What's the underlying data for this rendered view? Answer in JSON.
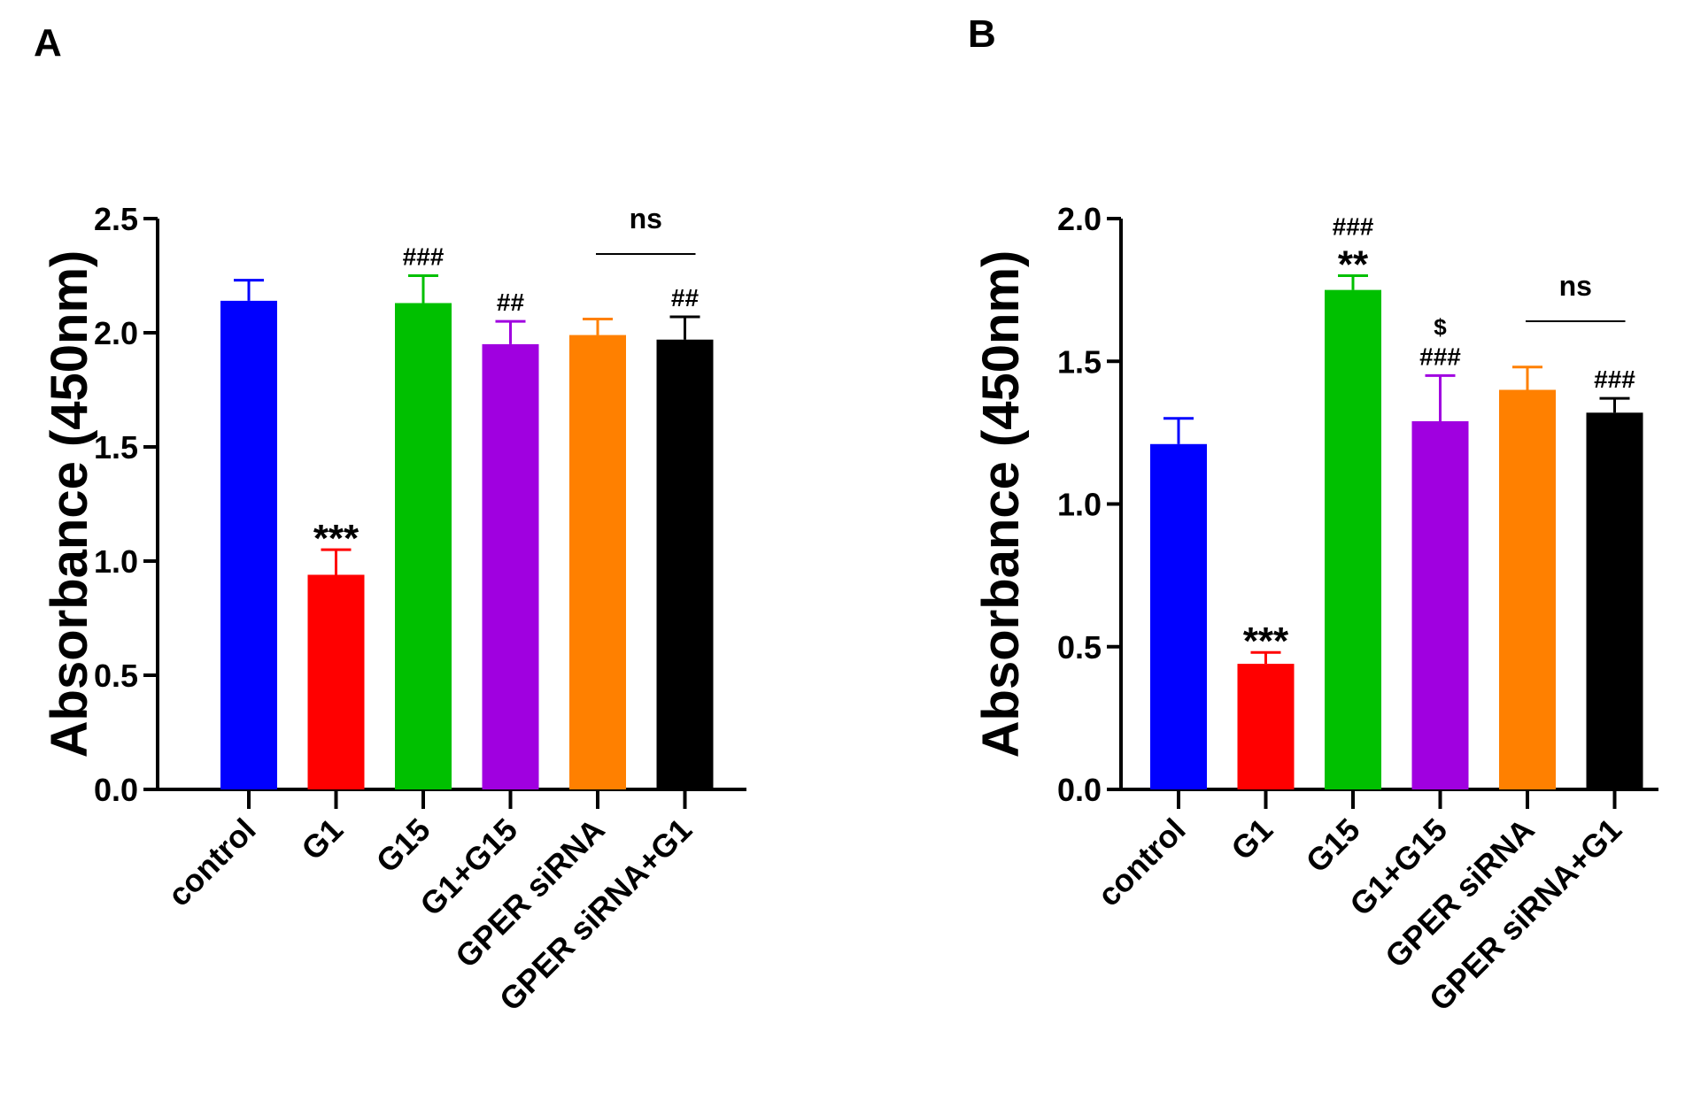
{
  "panels": {
    "a": {
      "letter": "A"
    },
    "b": {
      "letter": "B"
    }
  },
  "chart_data": [
    {
      "type": "bar",
      "panel": "A",
      "title": "",
      "xlabel": "",
      "ylabel": "Absorbance (450nm)",
      "ylim": [
        0,
        2.5
      ],
      "yticks": [
        0.0,
        0.5,
        1.0,
        1.5,
        2.0,
        2.5
      ],
      "yticklabels": [
        "0.0",
        "0.5",
        "1.0",
        "1.5",
        "2.0",
        "2.5"
      ],
      "categories": [
        "control",
        "G1",
        "G15",
        "G1+G15",
        "GPER siRNA",
        "GPER siRNA+G1"
      ],
      "values": [
        2.14,
        0.94,
        2.13,
        1.95,
        1.99,
        1.97
      ],
      "errors": [
        0.09,
        0.11,
        0.12,
        0.1,
        0.07,
        0.1
      ],
      "colors": [
        "#0000ff",
        "#ff0000",
        "#00c000",
        "#a000e0",
        "#ff8000",
        "#000000"
      ],
      "annotations": [
        "",
        "***",
        "###",
        "##",
        "",
        "##"
      ],
      "bracket": {
        "from": 4,
        "to": 5,
        "label": "ns"
      }
    },
    {
      "type": "bar",
      "panel": "B",
      "title": "",
      "xlabel": "",
      "ylabel": "Absorbance (450nm)",
      "ylim": [
        0,
        2.0
      ],
      "yticks": [
        0.0,
        0.5,
        1.0,
        1.5,
        2.0
      ],
      "yticklabels": [
        "0.0",
        "0.5",
        "1.0",
        "1.5",
        "2.0"
      ],
      "categories": [
        "control",
        "G1",
        "G15",
        "G1+G15",
        "GPER siRNA",
        "GPER siRNA+G1"
      ],
      "values": [
        1.21,
        0.44,
        1.75,
        1.29,
        1.4,
        1.32
      ],
      "errors": [
        0.09,
        0.04,
        0.05,
        0.16,
        0.08,
        0.05
      ],
      "colors": [
        "#0000ff",
        "#ff0000",
        "#00c000",
        "#a000e0",
        "#ff8000",
        "#000000"
      ],
      "annotations": [
        "",
        "***",
        "**\n###",
        "###\n$",
        "",
        "###"
      ],
      "bracket": {
        "from": 4,
        "to": 5,
        "label": "ns"
      }
    }
  ]
}
